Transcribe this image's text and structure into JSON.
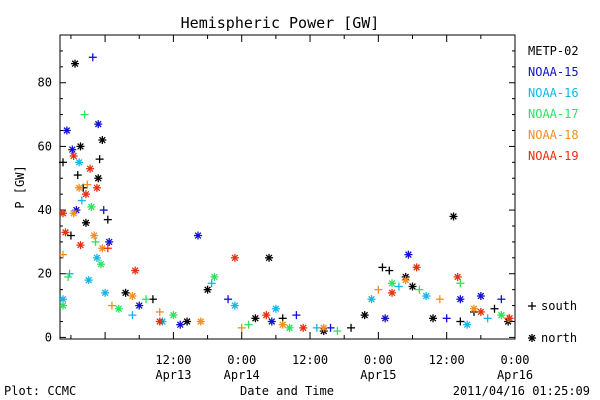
{
  "chart_data": {
    "type": "scatter",
    "title": "Hemispheric Power [GW]",
    "xlabel": "Date and Time",
    "ylabel": "P [GW]",
    "xlim": [
      -0.33,
      3.0
    ],
    "ylim": [
      -0.5,
      95
    ],
    "x_ticks": [
      {
        "x": 0.5,
        "label": "12:00",
        "date": ""
      },
      {
        "x": 1.0,
        "label": "0:00",
        "date": "Apr14"
      },
      {
        "x": 1.5,
        "label": "12:00",
        "date": ""
      },
      {
        "x": 2.0,
        "label": "0:00",
        "date": "Apr15"
      },
      {
        "x": 2.5,
        "label": "12:00",
        "date": ""
      },
      {
        "x": 3.0,
        "label": "0:00",
        "date": "Apr16"
      }
    ],
    "x_extra_labels": [
      {
        "x": 0.5,
        "label": "Apr13",
        "row": 2
      }
    ],
    "y_ticks": [
      0,
      20,
      40,
      60,
      80
    ],
    "legend": {
      "placement": "right",
      "series": [
        {
          "name": "METP-02",
          "color": "#000000"
        },
        {
          "name": "NOAA-15",
          "color": "#1010d0"
        },
        {
          "name": "NOAA-16",
          "color": "#10b8e8"
        },
        {
          "name": "NOAA-17",
          "color": "#30e060"
        },
        {
          "name": "NOAA-18",
          "color": "#f09020"
        },
        {
          "name": "NOAA-19",
          "color": "#e83010"
        }
      ],
      "symbols": [
        {
          "symbol": "+",
          "label": "south"
        },
        {
          "symbol": "*",
          "label": "north"
        }
      ]
    },
    "series": [
      {
        "name": "METP-02",
        "color": "#000000",
        "points": [
          [
            -0.32,
            55,
            "+"
          ],
          [
            -0.25,
            32,
            "+"
          ],
          [
            -0.22,
            86,
            "*"
          ],
          [
            -0.2,
            51,
            "+"
          ],
          [
            -0.18,
            60,
            "*"
          ],
          [
            -0.16,
            47,
            "+"
          ],
          [
            -0.14,
            36,
            "*"
          ],
          [
            -0.05,
            50,
            "*"
          ],
          [
            -0.04,
            56,
            "+"
          ],
          [
            -0.02,
            62,
            "*"
          ],
          [
            0.02,
            37,
            "+"
          ],
          [
            0.15,
            14,
            "*"
          ],
          [
            0.35,
            12,
            "+"
          ],
          [
            0.6,
            5,
            "*"
          ],
          [
            0.75,
            15,
            "*"
          ],
          [
            1.1,
            6,
            "*"
          ],
          [
            1.2,
            25,
            "*"
          ],
          [
            1.3,
            6,
            "+"
          ],
          [
            1.6,
            2,
            "*"
          ],
          [
            1.8,
            3,
            "+"
          ],
          [
            1.9,
            7,
            "*"
          ],
          [
            2.03,
            22,
            "+"
          ],
          [
            2.08,
            21,
            "+"
          ],
          [
            2.2,
            19,
            "*"
          ],
          [
            2.25,
            16,
            "*"
          ],
          [
            2.4,
            6,
            "*"
          ],
          [
            2.55,
            38,
            "*"
          ],
          [
            2.6,
            5,
            "+"
          ],
          [
            2.7,
            8,
            "+"
          ],
          [
            2.85,
            9,
            "+"
          ],
          [
            2.95,
            5,
            "*"
          ]
        ]
      },
      {
        "name": "NOAA-15",
        "color": "#1010d0",
        "points": [
          [
            -0.28,
            65,
            "*"
          ],
          [
            -0.24,
            59,
            "*"
          ],
          [
            -0.21,
            40,
            "*"
          ],
          [
            -0.09,
            88,
            "+"
          ],
          [
            -0.05,
            67,
            "*"
          ],
          [
            -0.01,
            40,
            "+"
          ],
          [
            0.03,
            30,
            "*"
          ],
          [
            0.25,
            10,
            "*"
          ],
          [
            0.55,
            4,
            "*"
          ],
          [
            0.68,
            32,
            "*"
          ],
          [
            0.9,
            12,
            "+"
          ],
          [
            1.22,
            5,
            "*"
          ],
          [
            1.4,
            7,
            "+"
          ],
          [
            1.65,
            3,
            "+"
          ],
          [
            2.05,
            6,
            "*"
          ],
          [
            2.22,
            26,
            "*"
          ],
          [
            2.5,
            6,
            "+"
          ],
          [
            2.6,
            12,
            "*"
          ],
          [
            2.75,
            13,
            "*"
          ],
          [
            2.9,
            12,
            "+"
          ]
        ]
      },
      {
        "name": "NOAA-16",
        "color": "#10b8e8",
        "points": [
          [
            -0.31,
            12,
            "*"
          ],
          [
            -0.26,
            20,
            "+"
          ],
          [
            -0.19,
            55,
            "*"
          ],
          [
            -0.17,
            43,
            "+"
          ],
          [
            -0.12,
            18,
            "*"
          ],
          [
            -0.06,
            25,
            "*"
          ],
          [
            0.0,
            14,
            "*"
          ],
          [
            0.2,
            7,
            "+"
          ],
          [
            0.42,
            5,
            "*"
          ],
          [
            0.78,
            17,
            "+"
          ],
          [
            0.95,
            10,
            "*"
          ],
          [
            1.25,
            9,
            "*"
          ],
          [
            1.55,
            3,
            "+"
          ],
          [
            1.95,
            12,
            "*"
          ],
          [
            2.15,
            16,
            "+"
          ],
          [
            2.35,
            13,
            "*"
          ],
          [
            2.65,
            4,
            "*"
          ],
          [
            2.8,
            6,
            "+"
          ]
        ]
      },
      {
        "name": "NOAA-17",
        "color": "#30e060",
        "points": [
          [
            -0.32,
            10,
            "*"
          ],
          [
            -0.27,
            19,
            "+"
          ],
          [
            -0.15,
            70,
            "+"
          ],
          [
            -0.1,
            41,
            "*"
          ],
          [
            -0.07,
            30,
            "+"
          ],
          [
            -0.03,
            23,
            "*"
          ],
          [
            0.1,
            9,
            "*"
          ],
          [
            0.3,
            12,
            "+"
          ],
          [
            0.5,
            7,
            "*"
          ],
          [
            0.8,
            19,
            "*"
          ],
          [
            1.05,
            4,
            "+"
          ],
          [
            1.35,
            3,
            "*"
          ],
          [
            1.7,
            2,
            "+"
          ],
          [
            2.1,
            17,
            "*"
          ],
          [
            2.3,
            15,
            "+"
          ],
          [
            2.6,
            17,
            "+"
          ],
          [
            2.9,
            7,
            "*"
          ]
        ]
      },
      {
        "name": "NOAA-18",
        "color": "#f09020",
        "points": [
          [
            -0.33,
            26,
            "+"
          ],
          [
            -0.23,
            39,
            "*"
          ],
          [
            -0.19,
            47,
            "*"
          ],
          [
            -0.13,
            48,
            "+"
          ],
          [
            -0.08,
            32,
            "*"
          ],
          [
            -0.02,
            28,
            "*"
          ],
          [
            0.05,
            10,
            "+"
          ],
          [
            0.2,
            13,
            "*"
          ],
          [
            0.4,
            8,
            "+"
          ],
          [
            0.7,
            5,
            "*"
          ],
          [
            1.0,
            3,
            "+"
          ],
          [
            1.3,
            4,
            "*"
          ],
          [
            1.6,
            3,
            "*"
          ],
          [
            2.0,
            15,
            "+"
          ],
          [
            2.2,
            18,
            "*"
          ],
          [
            2.45,
            12,
            "+"
          ],
          [
            2.7,
            9,
            "*"
          ],
          [
            2.95,
            6,
            "+"
          ]
        ]
      },
      {
        "name": "NOAA-19",
        "color": "#e83010",
        "points": [
          [
            -0.33,
            39,
            "*"
          ],
          [
            -0.29,
            33,
            "*"
          ],
          [
            -0.23,
            57,
            "*"
          ],
          [
            -0.18,
            29,
            "*"
          ],
          [
            -0.14,
            45,
            "*"
          ],
          [
            -0.11,
            53,
            "*"
          ],
          [
            -0.06,
            47,
            "*"
          ],
          [
            0.02,
            28,
            "+"
          ],
          [
            0.22,
            21,
            "*"
          ],
          [
            0.4,
            5,
            "*"
          ],
          [
            0.95,
            25,
            "*"
          ],
          [
            1.18,
            7,
            "*"
          ],
          [
            1.45,
            3,
            "*"
          ],
          [
            2.1,
            14,
            "*"
          ],
          [
            2.28,
            22,
            "*"
          ],
          [
            2.58,
            19,
            "*"
          ],
          [
            2.75,
            8,
            "*"
          ],
          [
            2.96,
            6,
            "*"
          ]
        ]
      }
    ]
  },
  "footer": {
    "left": "Plot: CCMC",
    "timestamp": "2011/04/16 01:25:09"
  }
}
